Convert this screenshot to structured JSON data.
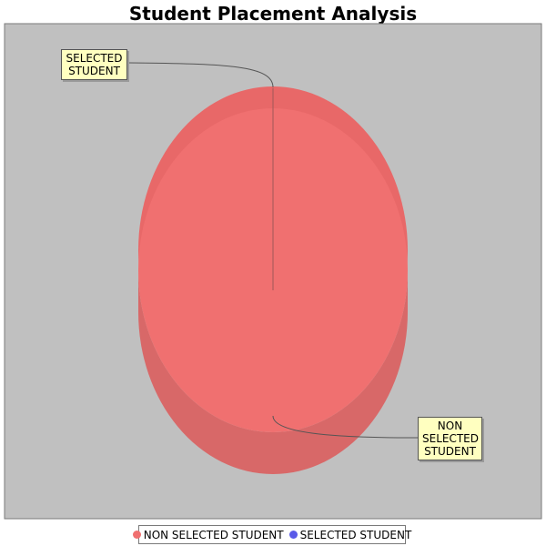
{
  "colors": {
    "background": "#ffffff",
    "plot_background": "#c0c0c0",
    "non_selected": "#f07070",
    "non_selected_side": "#d86868",
    "selected": "#5a5ae8",
    "label_fill": "#ffffc0"
  },
  "chart_data": {
    "type": "pie",
    "style": "3d",
    "title": "Student Placement Analysis",
    "slices": [
      {
        "name": "NON SELECTED STUDENT",
        "value": 100,
        "color": "#f07070",
        "label_lines": [
          "NON",
          "SELECTED",
          "STUDENT"
        ]
      },
      {
        "name": "SELECTED STUDENT",
        "value": 0,
        "color": "#5a5ae8",
        "label_lines": [
          "SELECTED",
          "STUDENT"
        ]
      }
    ],
    "legend": {
      "position": "bottom",
      "entries": [
        {
          "label": "NON SELECTED STUDENT",
          "color": "#f07070"
        },
        {
          "label": "SELECTED STUDENT",
          "color": "#5a5ae8"
        }
      ]
    }
  }
}
